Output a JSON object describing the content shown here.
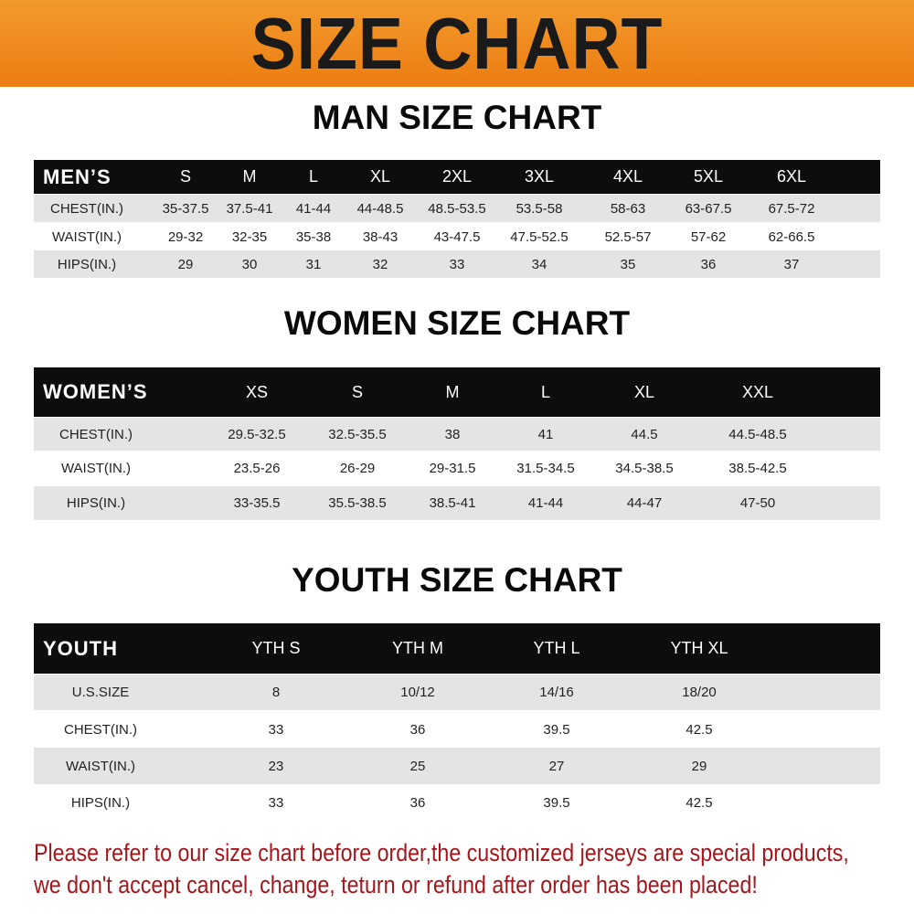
{
  "banner": {
    "title": "SIZE CHART"
  },
  "men": {
    "title": "MAN SIZE CHART",
    "header": [
      "MEN’S",
      "S",
      "M",
      "L",
      "XL",
      "2XL",
      "3XL",
      "4XL",
      "5XL",
      "6XL"
    ],
    "rows": [
      [
        "CHEST(IN.)",
        "35-37.5",
        "37.5-41",
        "41-44",
        "44-48.5",
        "48.5-53.5",
        "53.5-58",
        "58-63",
        "63-67.5",
        "67.5-72"
      ],
      [
        "WAIST(IN.)",
        "29-32",
        "32-35",
        "35-38",
        "38-43",
        "43-47.5",
        "47.5-52.5",
        "52.5-57",
        "57-62",
        "62-66.5"
      ],
      [
        "HIPS(IN.)",
        "29",
        "30",
        "31",
        "32",
        "33",
        "34",
        "35",
        "36",
        "37"
      ]
    ]
  },
  "women": {
    "title": "WOMEN SIZE CHART",
    "header": [
      "WOMEN’S",
      "XS",
      "S",
      "M",
      "L",
      "XL",
      "XXL"
    ],
    "rows": [
      [
        "CHEST(IN.)",
        "29.5-32.5",
        "32.5-35.5",
        "38",
        "41",
        "44.5",
        "44.5-48.5"
      ],
      [
        "WAIST(IN.)",
        "23.5-26",
        "26-29",
        "29-31.5",
        "31.5-34.5",
        "34.5-38.5",
        "38.5-42.5"
      ],
      [
        "HIPS(IN.)",
        "33-35.5",
        "35.5-38.5",
        "38.5-41",
        "41-44",
        "44-47",
        "47-50"
      ]
    ]
  },
  "youth": {
    "title": "YOUTH SIZE CHART",
    "header": [
      "YOUTH",
      "YTH S",
      "YTH M",
      "YTH L",
      "YTH XL"
    ],
    "rows": [
      [
        "U.S.SIZE",
        "8",
        "10/12",
        "14/16",
        "18/20"
      ],
      [
        "CHEST(IN.)",
        "33",
        "36",
        "39.5",
        "42.5"
      ],
      [
        "WAIST(IN.)",
        "23",
        "25",
        "27",
        "29"
      ],
      [
        "HIPS(IN.)",
        "33",
        "36",
        "39.5",
        "42.5"
      ]
    ]
  },
  "notice": {
    "line1": "Please refer to our size chart before order,the customized jerseys are special products,",
    "line2": "we don't accept cancel, change, teturn or refund after order has been placed!"
  },
  "colors": {
    "banner": "#ee8418",
    "header_row": "#0d0d0d",
    "stripe": "#e4e4e4",
    "notice": "#a3161c"
  }
}
